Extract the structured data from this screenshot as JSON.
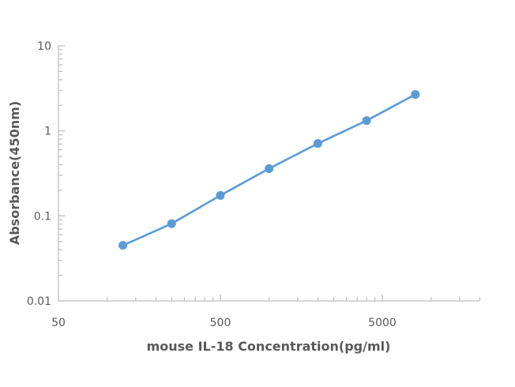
{
  "chart_data": {
    "type": "line",
    "title": "",
    "xlabel": "mouse IL-18 Concentration(pg/ml)",
    "ylabel": "Absorbance(450nm)",
    "xscale": "log",
    "yscale": "log",
    "xlim": [
      50,
      20000
    ],
    "ylim": [
      0.01,
      10
    ],
    "x_tick_labels": [
      "50",
      "500",
      "5000"
    ],
    "y_tick_labels": [
      "10",
      "1",
      "0.1",
      "0.01"
    ],
    "grid": false,
    "legend": null,
    "series": [
      {
        "name": "mouse IL-18",
        "color": "#5B9BD5",
        "marker": "circle",
        "x": [
          125,
          250,
          500,
          1000,
          2000,
          4000,
          8000
        ],
        "values": [
          0.045,
          0.081,
          0.174,
          0.36,
          0.71,
          1.32,
          2.68
        ]
      }
    ]
  },
  "colors": {
    "line": "#5B9BD5",
    "axis": "#BFBFBF",
    "text": "#595959"
  }
}
